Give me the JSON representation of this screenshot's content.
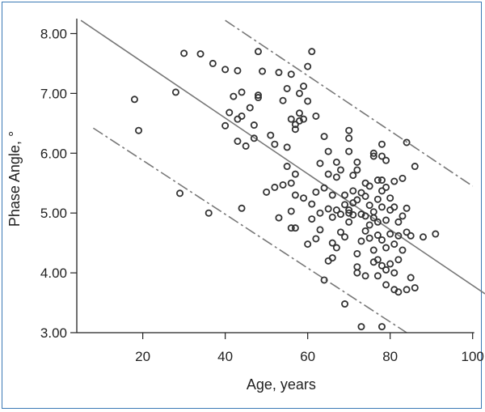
{
  "chart_data": {
    "type": "scatter",
    "xlabel": "Age, years",
    "ylabel": "Phase Angle, °",
    "xlim": [
      4,
      103
    ],
    "ylim": [
      3.0,
      8.25
    ],
    "x_ticks": [
      20,
      40,
      60,
      80,
      100
    ],
    "y_ticks": [
      3.0,
      4.0,
      5.0,
      6.0,
      7.0,
      8.0
    ],
    "y_tick_labels": [
      "3.00",
      "4.00",
      "5.00",
      "6.00",
      "7.00",
      "8.00"
    ],
    "grid": false,
    "colors": {
      "points": "#333333",
      "lines": "#777777",
      "frame": "#3a78b5"
    },
    "lines": [
      {
        "style": "solid",
        "x": [
          5,
          103
        ],
        "y": [
          8.22,
          3.65
        ]
      },
      {
        "style": "dashed",
        "x": [
          8,
          84
        ],
        "y": [
          6.42,
          3.0
        ]
      },
      {
        "style": "dashed",
        "x": [
          40,
          100
        ],
        "y": [
          8.22,
          5.45
        ]
      }
    ],
    "points": [
      [
        18,
        6.9
      ],
      [
        19,
        6.38
      ],
      [
        28,
        7.02
      ],
      [
        29,
        5.33
      ],
      [
        30,
        7.67
      ],
      [
        34,
        7.66
      ],
      [
        36,
        5.0
      ],
      [
        37,
        7.5
      ],
      [
        40,
        6.46
      ],
      [
        40,
        7.4
      ],
      [
        41,
        6.68
      ],
      [
        42,
        6.95
      ],
      [
        43,
        6.2
      ],
      [
        43,
        6.57
      ],
      [
        43,
        7.38
      ],
      [
        44,
        5.08
      ],
      [
        44,
        6.62
      ],
      [
        44,
        7.02
      ],
      [
        45,
        6.12
      ],
      [
        46,
        6.76
      ],
      [
        47,
        6.25
      ],
      [
        47,
        6.47
      ],
      [
        48,
        6.97
      ],
      [
        48,
        7.7
      ],
      [
        48,
        6.93
      ],
      [
        49,
        7.37
      ],
      [
        50,
        5.35
      ],
      [
        51,
        6.3
      ],
      [
        52,
        5.43
      ],
      [
        52,
        6.15
      ],
      [
        53,
        4.92
      ],
      [
        53,
        7.35
      ],
      [
        54,
        5.47
      ],
      [
        54,
        6.88
      ],
      [
        55,
        5.78
      ],
      [
        55,
        7.08
      ],
      [
        55,
        6.1
      ],
      [
        56,
        4.75
      ],
      [
        56,
        5.5
      ],
      [
        56,
        5.03
      ],
      [
        56,
        6.57
      ],
      [
        56,
        7.32
      ],
      [
        57,
        4.75
      ],
      [
        57,
        5.65
      ],
      [
        57,
        6.48
      ],
      [
        57,
        6.4
      ],
      [
        58,
        6.67
      ],
      [
        58,
        6.54
      ],
      [
        58,
        7.0
      ],
      [
        59,
        5.25
      ],
      [
        59,
        6.57
      ],
      [
        59,
        7.12
      ],
      [
        60,
        6.87
      ],
      [
        60,
        7.45
      ],
      [
        60,
        4.48
      ],
      [
        61,
        4.9
      ],
      [
        61,
        5.15
      ],
      [
        61,
        7.7
      ],
      [
        62,
        5.35
      ],
      [
        62,
        4.57
      ],
      [
        62,
        6.62
      ],
      [
        63,
        5.83
      ],
      [
        63,
        4.72
      ],
      [
        64,
        3.88
      ],
      [
        64,
        5.42
      ],
      [
        64,
        6.28
      ],
      [
        65,
        5.65
      ],
      [
        65,
        6.03
      ],
      [
        65,
        5.07
      ],
      [
        66,
        4.5
      ],
      [
        66,
        4.25
      ],
      [
        66,
        4.93
      ],
      [
        66,
        5.3
      ],
      [
        67,
        5.6
      ],
      [
        67,
        5.85
      ],
      [
        67,
        4.42
      ],
      [
        67,
        5.05
      ],
      [
        68,
        4.68
      ],
      [
        68,
        5.72
      ],
      [
        68,
        4.98
      ],
      [
        69,
        3.48
      ],
      [
        69,
        5.14
      ],
      [
        69,
        5.3
      ],
      [
        69,
        4.6
      ],
      [
        70,
        6.38
      ],
      [
        70,
        6.25
      ],
      [
        70,
        6.03
      ],
      [
        70,
        5.0
      ],
      [
        70,
        5.05
      ],
      [
        70,
        4.85
      ],
      [
        71,
        5.37
      ],
      [
        71,
        5.63
      ],
      [
        71,
        4.97
      ],
      [
        71,
        5.17
      ],
      [
        72,
        5.85
      ],
      [
        72,
        5.72
      ],
      [
        72,
        4.32
      ],
      [
        72,
        4.1
      ],
      [
        72,
        4.0
      ],
      [
        72,
        5.22
      ],
      [
        73,
        3.1
      ],
      [
        73,
        4.53
      ],
      [
        73,
        4.98
      ],
      [
        73,
        5.34
      ],
      [
        74,
        5.5
      ],
      [
        74,
        5.28
      ],
      [
        74,
        4.95
      ],
      [
        74,
        4.7
      ],
      [
        74,
        3.95
      ],
      [
        75,
        4.8
      ],
      [
        75,
        4.58
      ],
      [
        75,
        5.45
      ],
      [
        75,
        5.13
      ],
      [
        76,
        5.95
      ],
      [
        76,
        6.0
      ],
      [
        76,
        4.38
      ],
      [
        76,
        5.02
      ],
      [
        76,
        4.18
      ],
      [
        76,
        4.92
      ],
      [
        77,
        5.55
      ],
      [
        77,
        5.23
      ],
      [
        77,
        4.85
      ],
      [
        77,
        4.63
      ],
      [
        77,
        4.22
      ],
      [
        77,
        3.95
      ],
      [
        78,
        6.15
      ],
      [
        78,
        5.95
      ],
      [
        78,
        5.55
      ],
      [
        78,
        5.37
      ],
      [
        78,
        5.1
      ],
      [
        78,
        4.55
      ],
      [
        78,
        4.12
      ],
      [
        78,
        3.1
      ],
      [
        79,
        5.88
      ],
      [
        79,
        5.43
      ],
      [
        79,
        4.88
      ],
      [
        79,
        4.42
      ],
      [
        79,
        3.8
      ],
      [
        79,
        4.05
      ],
      [
        80,
        5.25
      ],
      [
        80,
        5.05
      ],
      [
        80,
        4.65
      ],
      [
        80,
        4.15
      ],
      [
        81,
        5.53
      ],
      [
        81,
        5.1
      ],
      [
        81,
        4.48
      ],
      [
        81,
        4.0
      ],
      [
        81,
        3.72
      ],
      [
        82,
        4.85
      ],
      [
        82,
        4.62
      ],
      [
        82,
        4.22
      ],
      [
        82,
        3.68
      ],
      [
        83,
        5.58
      ],
      [
        83,
        4.95
      ],
      [
        83,
        4.38
      ],
      [
        84,
        6.18
      ],
      [
        84,
        5.08
      ],
      [
        84,
        4.68
      ],
      [
        84,
        3.72
      ],
      [
        85,
        3.92
      ],
      [
        85,
        4.62
      ],
      [
        86,
        3.75
      ],
      [
        86,
        5.78
      ],
      [
        88,
        4.6
      ],
      [
        91,
        4.65
      ],
      [
        57,
        5.3
      ],
      [
        65,
        4.2
      ],
      [
        63,
        5.0
      ]
    ]
  }
}
